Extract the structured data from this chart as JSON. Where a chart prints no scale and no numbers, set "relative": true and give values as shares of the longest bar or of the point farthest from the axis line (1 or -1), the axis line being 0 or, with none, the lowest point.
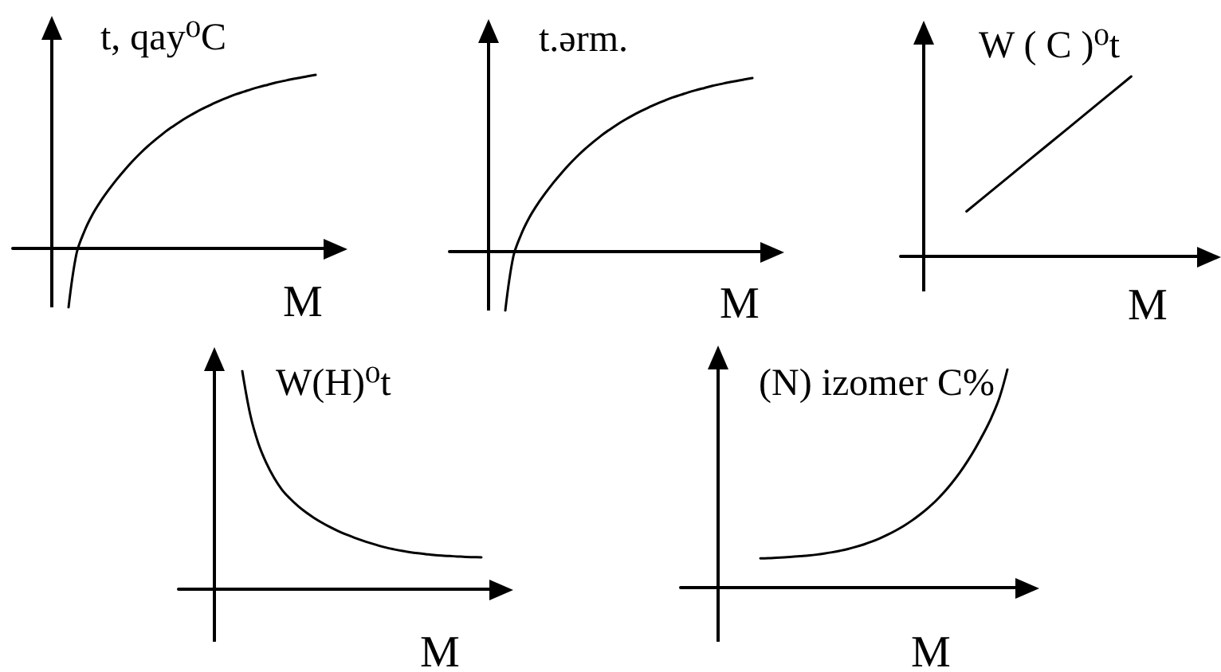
{
  "chart_data": [
    {
      "type": "line",
      "relative": true,
      "ylabel": "t, qay⁰C",
      "xlabel": "M",
      "marker": "none",
      "color": "#000000",
      "categories": [
        null,
        null,
        null,
        null,
        null,
        null,
        null,
        null,
        null,
        null,
        null,
        null,
        null,
        null,
        null,
        null,
        null,
        null,
        null,
        null,
        null,
        null,
        null,
        null,
        null,
        null,
        null,
        null,
        null,
        null,
        null,
        null,
        null,
        null,
        null,
        null,
        null,
        null,
        null,
        null
      ],
      "values": [
        null,
        null,
        null,
        null,
        null,
        null,
        null,
        -0.34,
        -0.03,
        0.1,
        0.195,
        0.27,
        0.335,
        0.395,
        0.45,
        0.501,
        0.548,
        0.591,
        0.63,
        0.667,
        0.7,
        0.731,
        0.759,
        0.785,
        0.809,
        0.831,
        0.852,
        0.87,
        0.888,
        0.903,
        0.918,
        0.931,
        0.943,
        0.955,
        0.965,
        0.975,
        0.983,
        0.992,
        1,
        null
      ]
    },
    {
      "type": "line",
      "relative": true,
      "ylabel": "t.ərm.",
      "xlabel": "M",
      "marker": "none",
      "color": "#000000",
      "categories": [
        null,
        null,
        null,
        null,
        null,
        null,
        null,
        null,
        null,
        null,
        null,
        null,
        null,
        null,
        null,
        null,
        null,
        null,
        null,
        null,
        null,
        null,
        null,
        null,
        null,
        null,
        null,
        null,
        null,
        null,
        null,
        null,
        null,
        null,
        null,
        null,
        null,
        null,
        null,
        null
      ],
      "values": [
        null,
        null,
        null,
        null,
        null,
        null,
        null,
        -0.34,
        -0.03,
        0.1,
        0.195,
        0.27,
        0.335,
        0.395,
        0.45,
        0.501,
        0.548,
        0.591,
        0.63,
        0.667,
        0.7,
        0.731,
        0.759,
        0.785,
        0.809,
        0.831,
        0.852,
        0.87,
        0.888,
        0.903,
        0.918,
        0.931,
        0.943,
        0.955,
        0.965,
        0.975,
        0.983,
        0.992,
        1,
        null
      ]
    },
    {
      "type": "line",
      "relative": true,
      "ylabel": "W ( C )⁰t",
      "xlabel": "M",
      "marker": "none",
      "color": "#000000",
      "categories": [
        null,
        null,
        null,
        null,
        null,
        null,
        null,
        null,
        null,
        null
      ],
      "values": [
        null,
        null,
        0.25,
        0.4,
        0.55,
        0.7,
        0.85,
        1,
        null,
        null
      ]
    },
    {
      "type": "line",
      "relative": true,
      "ylabel": "W(H)⁰t",
      "xlabel": "M",
      "marker": "none",
      "color": "#000000",
      "categories": [
        null,
        null,
        null,
        null,
        null,
        null,
        null,
        null,
        null,
        null,
        null,
        null,
        null,
        null,
        null,
        null,
        null,
        null,
        null,
        null,
        null,
        null,
        null,
        null,
        null,
        null,
        null,
        null,
        null,
        null,
        null,
        null,
        null,
        null,
        null,
        null,
        null,
        null,
        null,
        null
      ],
      "values": [
        null,
        null,
        null,
        null,
        null,
        null,
        null,
        null,
        1,
        0.8,
        0.67,
        0.58,
        0.51,
        0.455,
        0.415,
        0.381,
        0.352,
        0.327,
        0.305,
        0.285,
        0.267,
        0.251,
        0.237,
        0.224,
        0.212,
        0.201,
        0.191,
        0.183,
        0.176,
        0.17,
        0.165,
        0.161,
        0.157,
        0.154,
        0.152,
        0.15,
        0.148,
        0.147,
        0.146,
        null
      ]
    },
    {
      "type": "line",
      "relative": true,
      "ylabel": "(N) izomer C%",
      "xlabel": "M",
      "marker": "none",
      "color": "#000000",
      "categories": [
        null,
        null,
        null,
        null,
        null,
        null,
        null,
        null,
        null,
        null,
        null,
        null,
        null,
        null,
        null,
        null,
        null,
        null,
        null,
        null,
        null,
        null,
        null,
        null,
        null,
        null,
        null,
        null,
        null,
        null,
        null,
        null,
        null,
        null,
        null,
        null,
        null,
        null,
        null,
        null,
        null,
        null,
        null
      ],
      "values": [
        null,
        null,
        null,
        null,
        null,
        null,
        null,
        null,
        null,
        null,
        0.134,
        0.135,
        0.137,
        0.139,
        0.141,
        0.144,
        0.147,
        0.151,
        0.156,
        0.162,
        0.169,
        0.177,
        0.187,
        0.198,
        0.211,
        0.226,
        0.243,
        0.262,
        0.283,
        0.307,
        0.334,
        0.364,
        0.397,
        0.435,
        0.478,
        0.526,
        0.58,
        0.64,
        0.706,
        0.78,
        0.87,
        1,
        null
      ]
    }
  ]
}
